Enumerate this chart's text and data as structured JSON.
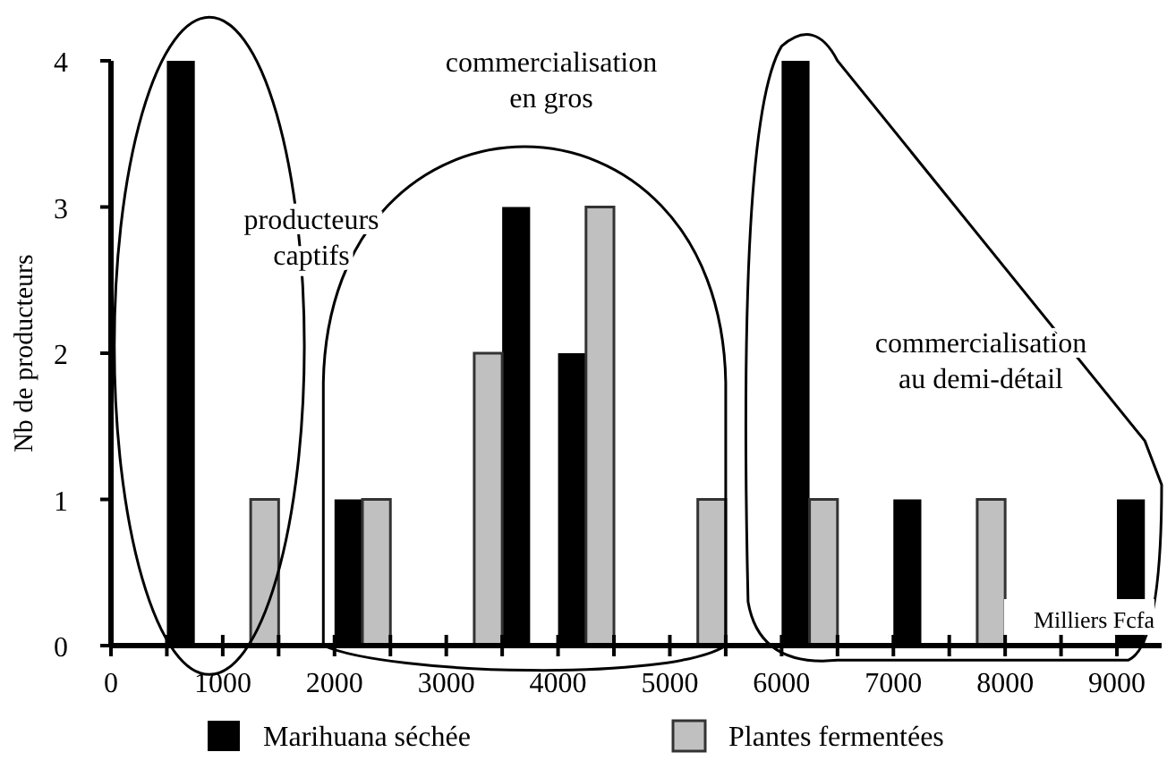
{
  "chart_data": {
    "type": "bar",
    "xlabel": "Milliers Fcfa",
    "ylabel": "Nb de producteurs",
    "xlim": [
      0,
      9400
    ],
    "ylim": [
      0,
      4
    ],
    "yticks": [
      0,
      1,
      2,
      3,
      4
    ],
    "xticks": [
      0,
      {
        "value": 500,
        "label": null
      },
      1000,
      {
        "value": 1500,
        "label": null
      },
      2000,
      {
        "value": 2500,
        "label": null
      },
      3000,
      {
        "value": 3500,
        "label": null
      },
      4000,
      {
        "value": 4500,
        "label": null
      },
      5000,
      {
        "value": 5500,
        "label": null
      },
      6000,
      {
        "value": 6500,
        "label": null
      },
      7000,
      {
        "value": 7500,
        "label": null
      },
      8000,
      {
        "value": 8500,
        "label": null
      },
      9000
    ],
    "series": [
      {
        "name": "Marihuana séchée",
        "color": "#000000",
        "x": [
          625,
          2125,
          3625,
          4125,
          6125,
          7125,
          9125
        ],
        "values": [
          4,
          1,
          3,
          2,
          4,
          1,
          1
        ]
      },
      {
        "name": "Plantes fermentées",
        "color": "#c0c0c0",
        "x": [
          1375,
          2375,
          3375,
          4375,
          5375,
          6375,
          7875
        ],
        "values": [
          1,
          1,
          2,
          3,
          1,
          1,
          1
        ]
      }
    ],
    "annotations": [
      "producteurs\ncaptifs",
      "commercialisation\nen gros",
      "commercialisation\nau demi-détail"
    ],
    "legend": "bottom",
    "grid": false
  }
}
